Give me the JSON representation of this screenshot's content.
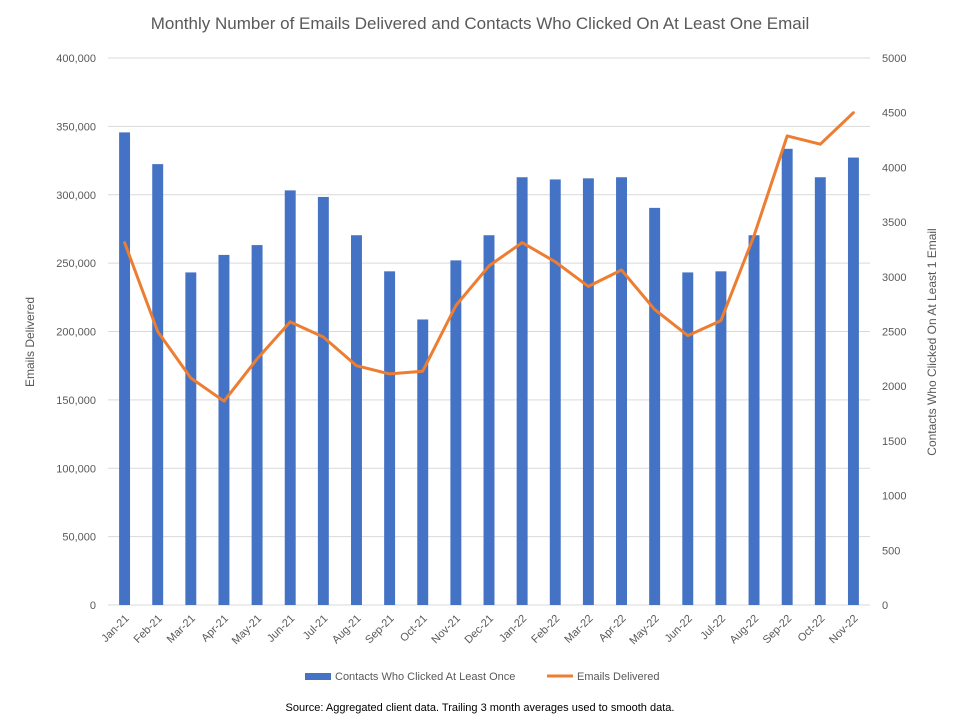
{
  "chart_data": {
    "type": "bar",
    "title": "Monthly Number of Emails Delivered and Contacts Who Clicked On At Least One Email",
    "y_left_label": "Emails Delivered",
    "y_right_label": "Contacts Who Clicked On At Least 1 Email",
    "y_left_range": [
      0,
      400000
    ],
    "y_right_range": [
      0,
      5000
    ],
    "y_left_ticks": [
      "0",
      "50,000",
      "100,000",
      "150,000",
      "200,000",
      "250,000",
      "300,000",
      "350,000",
      "400,000"
    ],
    "y_right_ticks": [
      "0",
      "500",
      "1000",
      "1500",
      "2000",
      "2500",
      "3000",
      "3500",
      "4000",
      "4500",
      "5000"
    ],
    "categories": [
      "Jan-21",
      "Feb-21",
      "Mar-21",
      "Apr-21",
      "May-21",
      "Jun-21",
      "Jul-21",
      "Aug-21",
      "Sep-21",
      "Oct-21",
      "Nov-21",
      "Dec-21",
      "Jan-22",
      "Feb-22",
      "Mar-22",
      "Apr-22",
      "May-22",
      "Jun-22",
      "Jul-22",
      "Aug-22",
      "Sep-22",
      "Oct-22",
      "Nov-22"
    ],
    "series": [
      {
        "name": "Contacts Who Clicked At Least Once",
        "type": "bar",
        "axis": "right",
        "color": "#4472C4",
        "values": [
          4320,
          4030,
          3040,
          3200,
          3290,
          3790,
          3730,
          3380,
          3050,
          2610,
          3150,
          3380,
          3910,
          3890,
          3900,
          3910,
          3630,
          3040,
          3050,
          3380,
          4170,
          3910,
          4090
        ]
      },
      {
        "name": "Emails Delivered",
        "type": "line",
        "axis": "left",
        "color": "#ED7D31",
        "values": [
          265000,
          200000,
          166000,
          149000,
          180000,
          207000,
          196000,
          175000,
          169000,
          171000,
          219000,
          248000,
          265000,
          251000,
          233000,
          245000,
          216000,
          197000,
          208000,
          270000,
          343000,
          337000,
          360000
        ]
      }
    ],
    "grid": true,
    "legend_position": "bottom",
    "source_note": "Source: Aggregated  client data. Trailing 3 month averages used to smooth data."
  }
}
